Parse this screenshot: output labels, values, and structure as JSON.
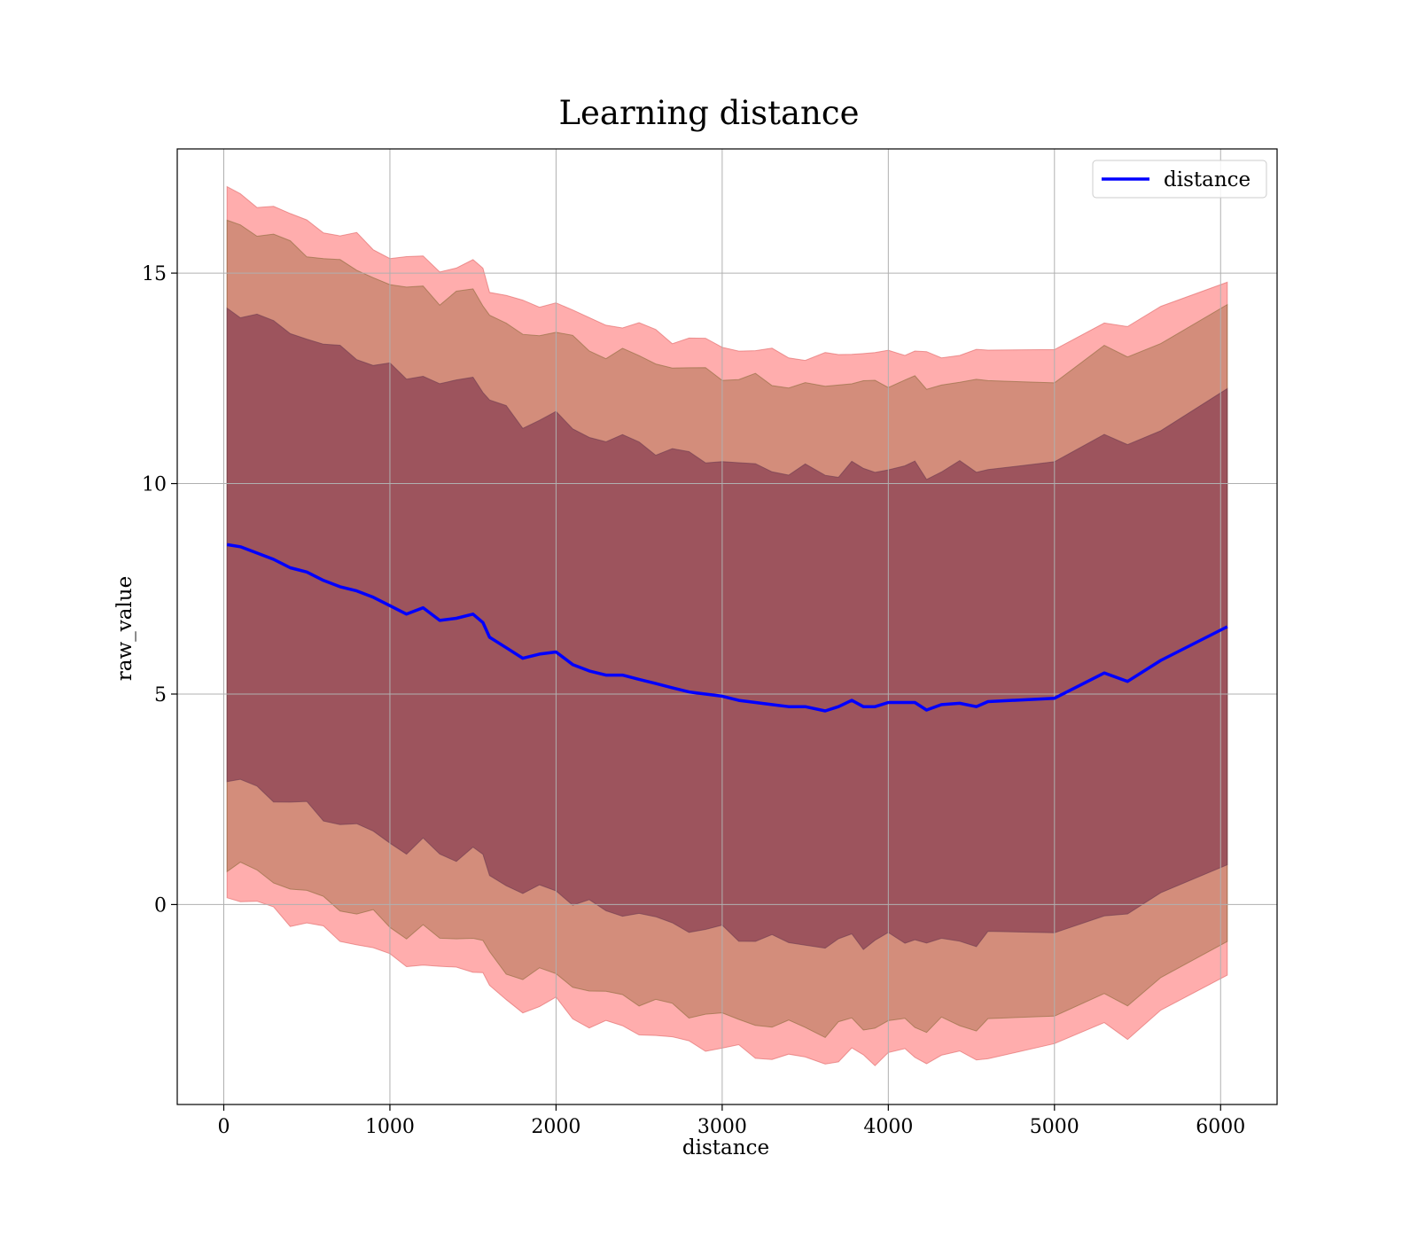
{
  "chart_data": {
    "type": "line",
    "title": "Learning distance",
    "xlabel": "distance",
    "ylabel": "raw_value",
    "xlim": [
      -280,
      6340
    ],
    "ylim": [
      -4.75,
      17.95
    ],
    "xticks": [
      0,
      1000,
      2000,
      3000,
      4000,
      5000,
      6000
    ],
    "yticks": [
      0,
      5,
      10,
      15
    ],
    "grid": true,
    "legend_position": "top-right",
    "colors": {
      "line": "#0000ff",
      "band_outer": "#ff0000",
      "band_middle": "#8b5a2b",
      "band_inner": "#5a0f3a",
      "grid": "#b0b0b0"
    },
    "series": [
      {
        "name": "distance",
        "x": [
          20,
          100,
          200,
          300,
          400,
          500,
          600,
          700,
          800,
          900,
          1000,
          1100,
          1200,
          1300,
          1400,
          1500,
          1560,
          1600,
          1700,
          1800,
          1900,
          2000,
          2100,
          2200,
          2300,
          2400,
          2500,
          2600,
          2700,
          2800,
          2900,
          3000,
          3100,
          3200,
          3300,
          3400,
          3500,
          3620,
          3700,
          3780,
          3850,
          3920,
          4000,
          4100,
          4160,
          4230,
          4320,
          4430,
          4530,
          4600,
          5000,
          5300,
          5440,
          5640,
          6040
        ],
        "y": [
          8.55,
          8.5,
          8.35,
          8.2,
          8.0,
          7.9,
          7.7,
          7.55,
          7.45,
          7.3,
          7.1,
          6.9,
          7.05,
          6.75,
          6.8,
          6.9,
          6.7,
          6.35,
          6.1,
          5.85,
          5.95,
          6.0,
          5.7,
          5.55,
          5.45,
          5.45,
          5.35,
          5.25,
          5.15,
          5.05,
          5.0,
          4.95,
          4.85,
          4.8,
          4.75,
          4.7,
          4.7,
          4.6,
          4.7,
          4.85,
          4.7,
          4.7,
          4.8,
          4.8,
          4.8,
          4.62,
          4.75,
          4.78,
          4.7,
          4.82,
          4.9,
          5.5,
          5.3,
          5.8,
          6.6
        ]
      }
    ],
    "bands": [
      {
        "level": "outer",
        "upper_offset": 8.35,
        "lower_offset": -8.35
      },
      {
        "level": "middle",
        "upper_offset": 7.65,
        "lower_offset": -7.6
      },
      {
        "level": "inner",
        "upper_offset": 5.6,
        "lower_offset": -5.6
      }
    ]
  }
}
